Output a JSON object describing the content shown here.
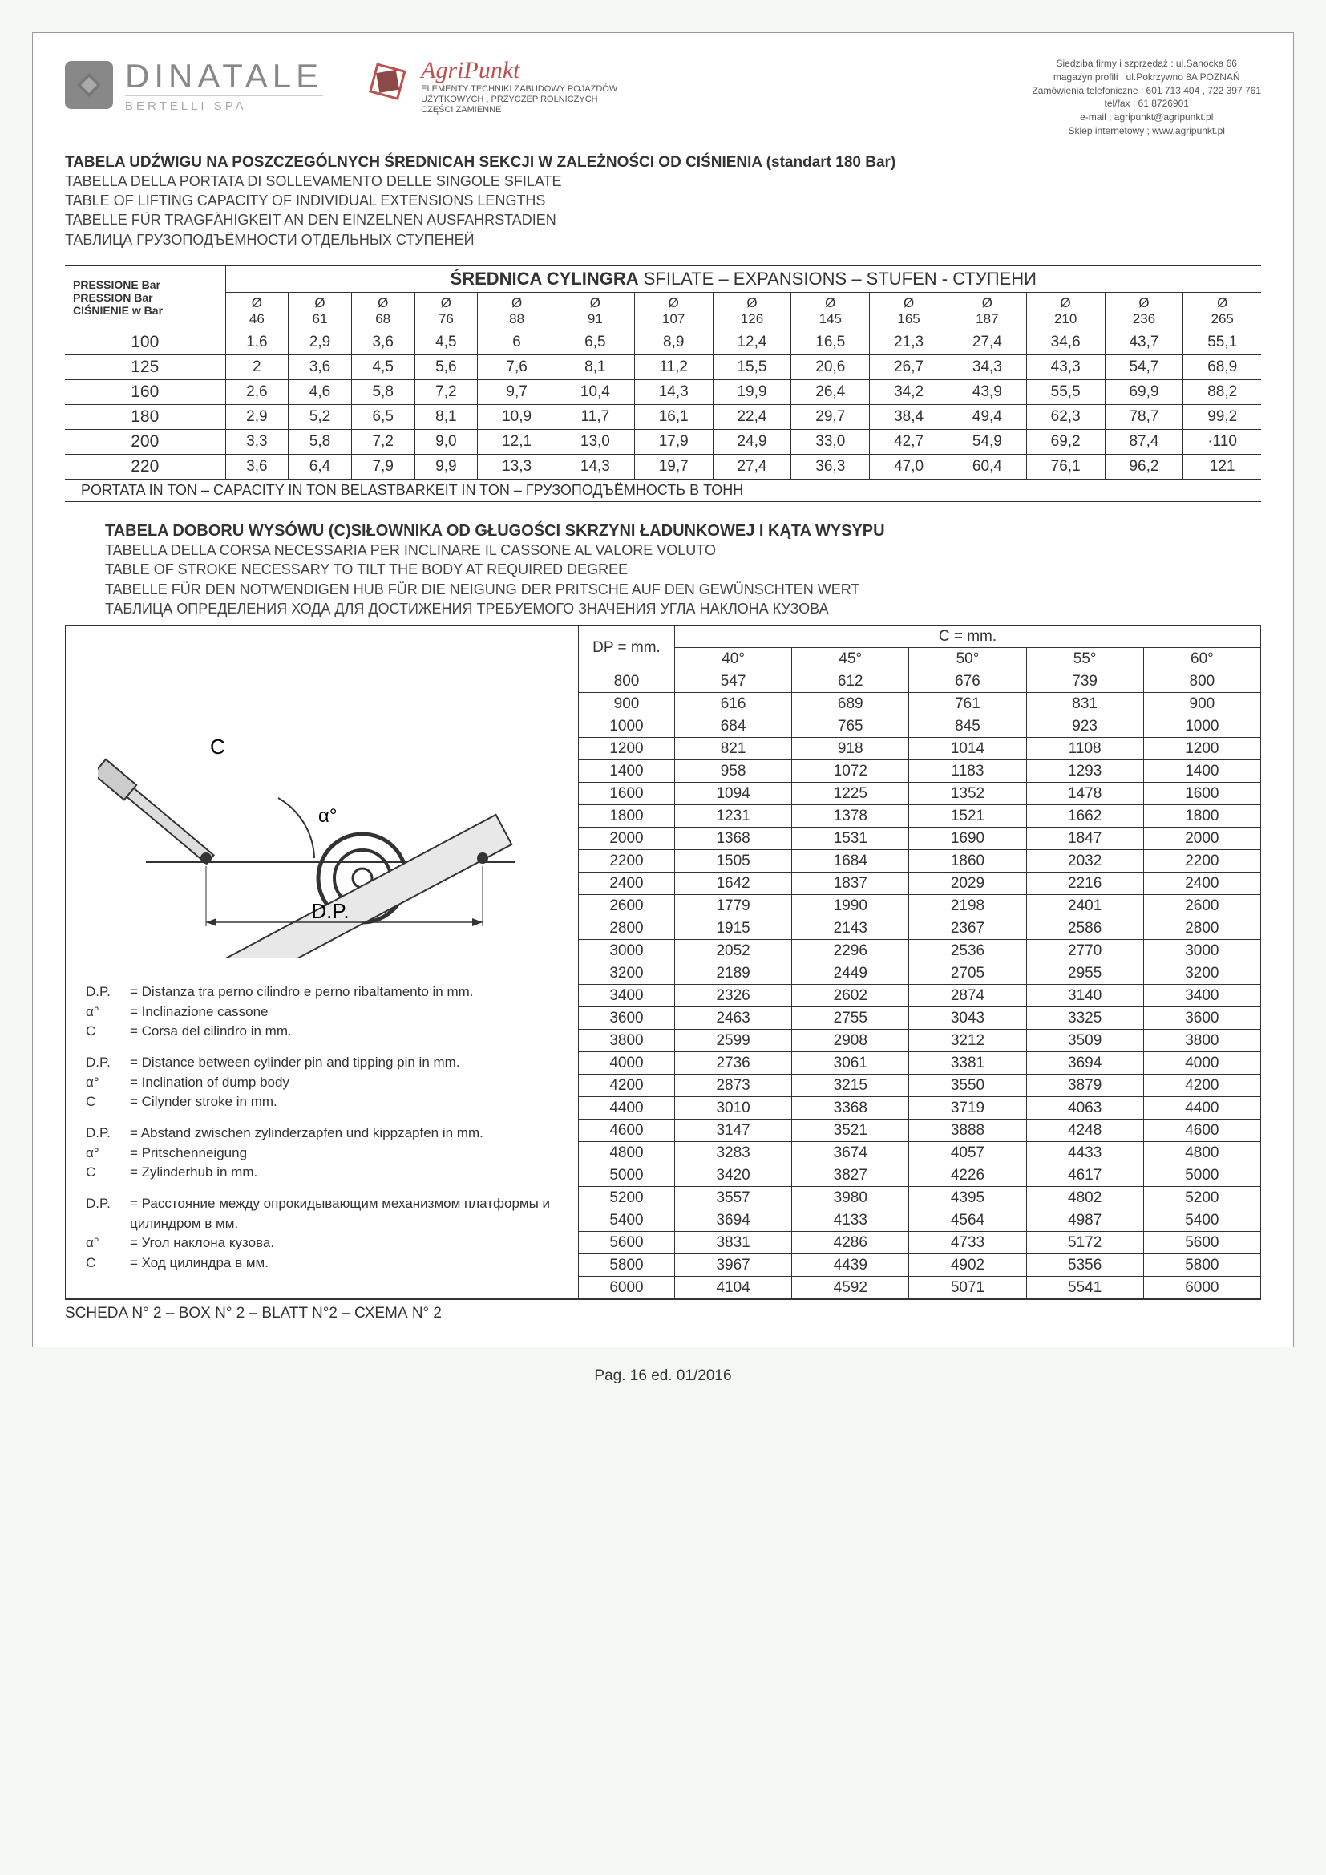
{
  "header": {
    "logo1_main": "DINATALE",
    "logo1_sub": "BERTELLI SPA",
    "logo2_main": "AgriPunkt",
    "logo2_sub1": "ELEMENTY TECHNIKI ZABUDOWY POJAZDÓW",
    "logo2_sub2": "UŻYTKOWYCH , PRZYCZEP ROLNICZYCH",
    "logo2_sub3": "CZĘŚCI ZAMIENNE",
    "contact_l1": "Siedziba firmy i szprzedaż : ul.Sanocka 66",
    "contact_l2": "magazyn profili : ul.Pokrzywno 8A  POZNAŃ",
    "contact_l3": "Zamówienia telefoniczne : 601 713 404 ,  722 397 761",
    "contact_l4": "tel/fax ; 61 8726901",
    "contact_l5": "e-mail ; agripunkt@agripunkt.pl",
    "contact_l6": "Sklep internetowy ; www.agripunkt.pl"
  },
  "section1": {
    "title_main": "TABELA UDŹWIGU NA POSZCZEGÓLNYCH ŚREDNICAH  SEKCJI W ZALEŻNOŚCI OD CIŚNIENIA (standart 180 Bar)",
    "title_it": "TABELLA DELLA PORTATA DI SOLLEVAMENTO DELLE SINGOLE SFILATE",
    "title_en": "TABLE OF LIFTING CAPACITY OF INDIVIDUAL EXTENSIONS LENGTHS",
    "title_de": "TABELLE FÜR TRAGFÄHIGKEIT AN DEN EINZELNEN AUSFAHRSTADIEN",
    "title_ru": "ТАБЛИЦА ГРУЗОПОДЪЁМНОСТИ ОТДЕЛЬНЫХ СТУПЕНЕЙ",
    "pressure_hdr1": "PRESSIONE Bar",
    "pressure_hdr2": "PRESSION Bar",
    "pressure_hdr3": "CIŚNIENIE w Bar",
    "big_hdr_bold": "ŚREDNICA CYLINGRA",
    "big_hdr_rest": "  SFILATE – EXPANSIONS – STUFEN - СТУПЕНИ",
    "diameters": [
      "Ø\n46",
      "Ø\n61",
      "Ø\n68",
      "Ø\n76",
      "Ø\n88",
      "Ø\n91",
      "Ø\n107",
      "Ø\n126",
      "Ø\n145",
      "Ø\n165",
      "Ø\n187",
      "Ø\n210",
      "Ø\n236",
      "Ø\n265"
    ],
    "pressures": [
      "100",
      "125",
      "160",
      "180",
      "200",
      "220"
    ],
    "rows": [
      [
        "1,6",
        "2,9",
        "3,6",
        "4,5",
        "6",
        "6,5",
        "8,9",
        "12,4",
        "16,5",
        "21,3",
        "27,4",
        "34,6",
        "43,7",
        "55,1"
      ],
      [
        "2",
        "3,6",
        "4,5",
        "5,6",
        "7,6",
        "8,1",
        "11,2",
        "15,5",
        "20,6",
        "26,7",
        "34,3",
        "43,3",
        "54,7",
        "68,9"
      ],
      [
        "2,6",
        "4,6",
        "5,8",
        "7,2",
        "9,7",
        "10,4",
        "14,3",
        "19,9",
        "26,4",
        "34,2",
        "43,9",
        "55,5",
        "69,9",
        "88,2"
      ],
      [
        "2,9",
        "5,2",
        "6,5",
        "8,1",
        "10,9",
        "11,7",
        "16,1",
        "22,4",
        "29,7",
        "38,4",
        "49,4",
        "62,3",
        "78,7",
        "99,2"
      ],
      [
        "3,3",
        "5,8",
        "7,2",
        "9,0",
        "12,1",
        "13,0",
        "17,9",
        "24,9",
        "33,0",
        "42,7",
        "54,9",
        "69,2",
        "87,4",
        "·110"
      ],
      [
        "3,6",
        "6,4",
        "7,9",
        "9,9",
        "13,3",
        "14,3",
        "19,7",
        "27,4",
        "36,3",
        "47,0",
        "60,4",
        "76,1",
        "96,2",
        "121"
      ]
    ],
    "footer": "PORTATA IN TON  – CAPACITY IN TON  BELASTBARKEIT IN TON – ГРУЗОПОДЪЁМНОСТЬ В ТОНН"
  },
  "section2": {
    "title_main": "TABELA DOBORU WYSÓWU (C)SIŁOWNIKA OD GŁUGOŚCI SKRZYNI ŁADUNKOWEJ I KĄTA WYSYPU",
    "title_it": "TABELLA DELLA CORSA NECESSARIA PER INCLINARE IL CASSONE AL VALORE VOLUTO",
    "title_en": "TABLE OF STROKE NECESSARY TO TILT THE BODY AT REQUIRED DEGREE",
    "title_de": "TABELLE FÜR DEN NOTWENDIGEN HUB FÜR DIE NEIGUNG DER PRITSCHE AUF DEN GEWÜNSCHTEN WERT",
    "title_ru": "ТАБЛИЦА ОПРЕДЕЛЕНИЯ ХОДА ДЛЯ ДОСТИЖЕНИЯ ТРЕБУЕМОГО ЗНАЧЕНИЯ УГЛА НАКЛОНА КУЗОВА",
    "diagram_C": "C",
    "diagram_alpha": "α°",
    "diagram_DP": "D.P.",
    "legend": {
      "it": [
        [
          "D.P.",
          "= Distanza tra perno cilindro e perno ribaltamento in mm."
        ],
        [
          "α°",
          "= Inclinazione cassone"
        ],
        [
          "C",
          "= Corsa del cilindro in mm."
        ]
      ],
      "en": [
        [
          "D.P.",
          "= Distance between cylinder pin and tipping pin in mm."
        ],
        [
          "α°",
          "= Inclination of dump body"
        ],
        [
          "C",
          "= Cilynder stroke in mm."
        ]
      ],
      "de": [
        [
          "D.P.",
          "= Abstand zwischen zylinderzapfen und kippzapfen in mm."
        ],
        [
          "α°",
          "= Pritschenneigung"
        ],
        [
          "C",
          "= Zylinderhub in mm."
        ]
      ],
      "ru": [
        [
          "D.P.",
          "= Расстояние между опрокидывающим механизмом платформы и цилиндром в мм."
        ],
        [
          "α°",
          "= Угол наклона кузова."
        ],
        [
          "C",
          "= Ход цилиндра в мм."
        ]
      ]
    },
    "t2_dp_hdr": "DP = mm.",
    "t2_c_hdr": "C = mm.",
    "t2_angles": [
      "40°",
      "45°",
      "50°",
      "55°",
      "60°"
    ],
    "t2_dp": [
      "800",
      "900",
      "1000",
      "1200",
      "1400",
      "1600",
      "1800",
      "2000",
      "2200",
      "2400",
      "2600",
      "2800",
      "3000",
      "3200",
      "3400",
      "3600",
      "3800",
      "4000",
      "4200",
      "4400",
      "4600",
      "4800",
      "5000",
      "5200",
      "5400",
      "5600",
      "5800",
      "6000"
    ],
    "t2_rows": [
      [
        "547",
        "612",
        "676",
        "739",
        "800"
      ],
      [
        "616",
        "689",
        "761",
        "831",
        "900"
      ],
      [
        "684",
        "765",
        "845",
        "923",
        "1000"
      ],
      [
        "821",
        "918",
        "1014",
        "1108",
        "1200"
      ],
      [
        "958",
        "1072",
        "1183",
        "1293",
        "1400"
      ],
      [
        "1094",
        "1225",
        "1352",
        "1478",
        "1600"
      ],
      [
        "1231",
        "1378",
        "1521",
        "1662",
        "1800"
      ],
      [
        "1368",
        "1531",
        "1690",
        "1847",
        "2000"
      ],
      [
        "1505",
        "1684",
        "1860",
        "2032",
        "2200"
      ],
      [
        "1642",
        "1837",
        "2029",
        "2216",
        "2400"
      ],
      [
        "1779",
        "1990",
        "2198",
        "2401",
        "2600"
      ],
      [
        "1915",
        "2143",
        "2367",
        "2586",
        "2800"
      ],
      [
        "2052",
        "2296",
        "2536",
        "2770",
        "3000"
      ],
      [
        "2189",
        "2449",
        "2705",
        "2955",
        "3200"
      ],
      [
        "2326",
        "2602",
        "2874",
        "3140",
        "3400"
      ],
      [
        "2463",
        "2755",
        "3043",
        "3325",
        "3600"
      ],
      [
        "2599",
        "2908",
        "3212",
        "3509",
        "3800"
      ],
      [
        "2736",
        "3061",
        "3381",
        "3694",
        "4000"
      ],
      [
        "2873",
        "3215",
        "3550",
        "3879",
        "4200"
      ],
      [
        "3010",
        "3368",
        "3719",
        "4063",
        "4400"
      ],
      [
        "3147",
        "3521",
        "3888",
        "4248",
        "4600"
      ],
      [
        "3283",
        "3674",
        "4057",
        "4433",
        "4800"
      ],
      [
        "3420",
        "3827",
        "4226",
        "4617",
        "5000"
      ],
      [
        "3557",
        "3980",
        "4395",
        "4802",
        "5200"
      ],
      [
        "3694",
        "4133",
        "4564",
        "4987",
        "5400"
      ],
      [
        "3831",
        "4286",
        "4733",
        "5172",
        "5600"
      ],
      [
        "3967",
        "4439",
        "4902",
        "5356",
        "5800"
      ],
      [
        "4104",
        "4592",
        "5071",
        "5541",
        "6000"
      ]
    ]
  },
  "footer": {
    "scheda": "SCHEDA N° 2 – BOX N° 2 – BLATT N°2 – СХЕМА N° 2",
    "page": "Pag. 16 ed. 01/2016"
  }
}
